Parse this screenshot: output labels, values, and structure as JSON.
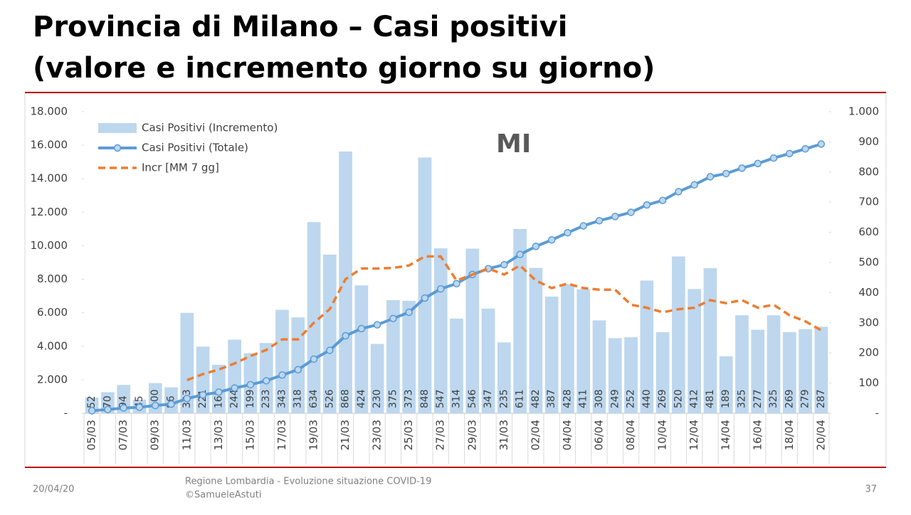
{
  "chart_data": {
    "type": "bar",
    "title": "Provincia di Milano – Casi positivi",
    "subtitle": "(valore e incremento giorno su giorno)",
    "annotation": "MI",
    "categories": [
      "05/03",
      null,
      "07/03",
      null,
      "09/03",
      null,
      "11/03",
      null,
      "13/03",
      null,
      "15/03",
      null,
      "17/03",
      null,
      "19/03",
      null,
      "21/03",
      null,
      "23/03",
      null,
      "25/03",
      null,
      "27/03",
      null,
      "29/03",
      null,
      "31/03",
      null,
      "02/04",
      null,
      "04/04",
      null,
      "06/04",
      null,
      "08/04",
      null,
      "10/04",
      null,
      "12/04",
      null,
      "14/04",
      null,
      "16/04",
      null,
      "18/04",
      null,
      "20/04"
    ],
    "series": [
      {
        "name": "Casi Positivi (Incremento)",
        "type": "bar",
        "axis": "y2",
        "color": "#bdd7ee",
        "values": [
          52,
          70,
          94,
          45,
          100,
          86,
          333,
          221,
          161,
          244,
          199,
          233,
          343,
          318,
          634,
          526,
          868,
          424,
          230,
          375,
          373,
          848,
          547,
          314,
          546,
          347,
          235,
          611,
          482,
          387,
          428,
          411,
          308,
          249,
          252,
          440,
          269,
          520,
          412,
          481,
          189,
          325,
          277,
          325,
          269,
          279,
          287
        ]
      },
      {
        "name": "Casi Positivi (Totale)",
        "type": "line",
        "axis": "y",
        "color": "#5b9bd5",
        "values": [
          152,
          222,
          316,
          361,
          461,
          547,
          880,
          1101,
          1262,
          1506,
          1705,
          1938,
          2281,
          2599,
          3233,
          3759,
          4627,
          5051,
          5281,
          5656,
          6029,
          6877,
          7424,
          7738,
          8284,
          8631,
          8866,
          9477,
          9959,
          10346,
          10774,
          11185,
          11493,
          11742,
          11994,
          12434,
          12703,
          13223,
          13635,
          14116,
          14305,
          14630,
          14907,
          15232,
          15501,
          15780,
          16067
        ]
      },
      {
        "name": "Incr [MM 7 gg]",
        "type": "dashed",
        "axis": "y2",
        "color": "#ed7d31",
        "values": [
          null,
          null,
          null,
          null,
          null,
          null,
          110,
          130,
          145,
          165,
          190,
          210,
          245,
          245,
          300,
          345,
          445,
          480,
          480,
          482,
          490,
          520,
          520,
          440,
          460,
          480,
          460,
          490,
          440,
          415,
          430,
          415,
          410,
          410,
          360,
          350,
          335,
          345,
          350,
          375,
          365,
          375,
          350,
          360,
          325,
          305,
          275
        ]
      }
    ],
    "ylim": [
      0,
      18000
    ],
    "yticks": [
      {
        "value": 0,
        "label": "-"
      },
      {
        "value": 2000,
        "label": "2.000"
      },
      {
        "value": 4000,
        "label": "4.000"
      },
      {
        "value": 6000,
        "label": "6.000"
      },
      {
        "value": 8000,
        "label": "8.000"
      },
      {
        "value": 10000,
        "label": "10.000"
      },
      {
        "value": 12000,
        "label": "12.000"
      },
      {
        "value": 14000,
        "label": "14.000"
      },
      {
        "value": 16000,
        "label": "16.000"
      },
      {
        "value": 18000,
        "label": "18.000"
      }
    ],
    "y2lim": [
      0,
      1000
    ],
    "y2ticks": [
      {
        "value": 0,
        "label": "-"
      },
      100,
      200,
      300,
      400,
      500,
      600,
      700,
      800,
      900,
      {
        "value": 1000,
        "label": "1.000"
      }
    ],
    "grid": false,
    "legend": "top-left"
  },
  "footer": {
    "date": "20/04/20",
    "source": "Regione Lombardia - Evoluzione situazione COVID-19",
    "author": "©SamueleAstuti",
    "page": "37"
  }
}
